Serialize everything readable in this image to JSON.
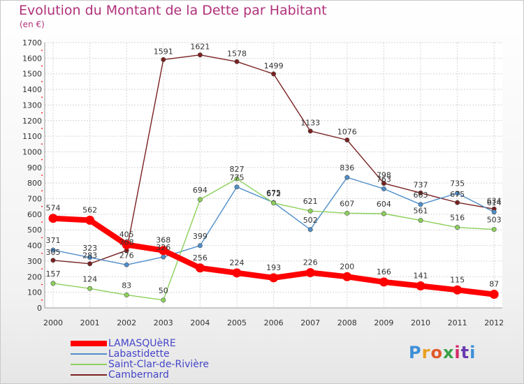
{
  "header": {
    "title": "Evolution du Montant de la Dette par Habitant",
    "unit": "(en €)"
  },
  "chart_data": {
    "type": "line",
    "title": "Evolution du Montant de la Dette par Habitant",
    "ylabel": "(en €)",
    "xlabel": "",
    "ylim": [
      0,
      1700
    ],
    "yticks": [
      0,
      100,
      200,
      300,
      400,
      500,
      600,
      700,
      800,
      900,
      1000,
      1100,
      1200,
      1300,
      1400,
      1500,
      1600,
      1700
    ],
    "categories": [
      "2000",
      "2001",
      "2002",
      "2003",
      "2004",
      "2005",
      "2006",
      "2007",
      "2008",
      "2009",
      "2010",
      "2011",
      "2012"
    ],
    "grid": true,
    "legend_position": "bottom-left",
    "series": [
      {
        "name": "Cambernard",
        "color": "#7a2020",
        "values": [
          305,
          283,
          368,
          1591,
          1621,
          1578,
          1499,
          1133,
          1076,
          798,
          737,
          675,
          634
        ]
      },
      {
        "name": "Labastidette",
        "color": "#4f8ec9",
        "values": [
          371,
          323,
          276,
          326,
          399,
          775,
          675,
          502,
          836,
          763,
          663,
          735,
          614
        ]
      },
      {
        "name": "Saint-Clar-de-Rivière",
        "color": "#8cd05a",
        "values": [
          157,
          124,
          83,
          50,
          694,
          827,
          672,
          621,
          607,
          604,
          561,
          516,
          503
        ]
      },
      {
        "name": "LAMASQUèRE",
        "color": "#ff0000",
        "values": [
          574,
          562,
          405,
          368,
          256,
          224,
          193,
          226,
          200,
          166,
          141,
          115,
          87
        ]
      }
    ],
    "legend": [
      {
        "name": "LAMASQUèRE",
        "color": "#ff0000"
      },
      {
        "name": "Labastidette",
        "color": "#4f8ec9"
      },
      {
        "name": "Saint-Clar-de-Rivière",
        "color": "#8cd05a"
      },
      {
        "name": "Cambernard",
        "color": "#7a2020"
      }
    ]
  },
  "logo": {
    "text": "Proxiti"
  }
}
